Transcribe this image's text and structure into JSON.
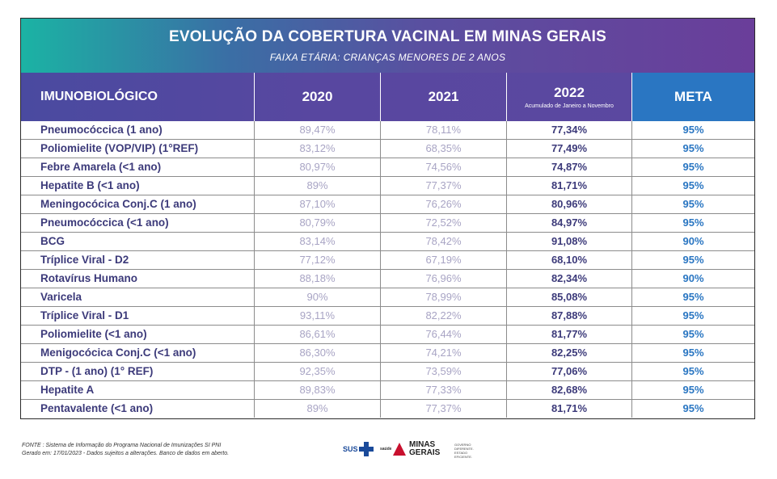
{
  "title": "EVOLUÇÃO DA COBERTURA VACINAL EM MINAS GERAIS",
  "subtitle": "FAIXA ETÁRIA: CRIANÇAS MENORES DE 2 ANOS",
  "columns": {
    "name": "IMUNOBIOLÓGICO",
    "y2020": "2020",
    "y2021": "2021",
    "y2022": "2022",
    "y2022_note": "Acumulado de Janeiro a Novembro",
    "meta": "META"
  },
  "colors": {
    "title_gradient_start": "#1bb3a4",
    "title_gradient_end": "#6a3e9a",
    "header_bg": "#5847a0",
    "meta_bg": "#2a76c2",
    "name_text": "#3c3a7a",
    "faded_text": "#a8a4c4"
  },
  "chart_data": {
    "type": "table",
    "title": "EVOLUÇÃO DA COBERTURA VACINAL EM MINAS GERAIS",
    "subtitle": "FAIXA ETÁRIA: CRIANÇAS MENORES DE 2 ANOS",
    "headers": [
      "IMUNOBIOLÓGICO",
      "2020",
      "2021",
      "2022",
      "META"
    ],
    "rows": [
      {
        "name": "Pneumocóccica (1 ano)",
        "y2020": "89,47%",
        "y2021": "78,11%",
        "y2022": "77,34%",
        "meta": "95%"
      },
      {
        "name": "Poliomielite (VOP/VIP) (1°REF)",
        "y2020": "83,12%",
        "y2021": "68,35%",
        "y2022": "77,49%",
        "meta": "95%"
      },
      {
        "name": "Febre Amarela (<1 ano)",
        "y2020": "80,97%",
        "y2021": "74,56%",
        "y2022": "74,87%",
        "meta": "95%"
      },
      {
        "name": "Hepatite B (<1 ano)",
        "y2020": "89%",
        "y2021": "77,37%",
        "y2022": "81,71%",
        "meta": "95%"
      },
      {
        "name": "Meningocócica Conj.C (1 ano)",
        "y2020": "87,10%",
        "y2021": "76,26%",
        "y2022": "80,96%",
        "meta": "95%"
      },
      {
        "name": "Pneumocóccica (<1 ano)",
        "y2020": "80,79%",
        "y2021": "72,52%",
        "y2022": "84,97%",
        "meta": "95%"
      },
      {
        "name": "BCG",
        "y2020": "83,14%",
        "y2021": "78,42%",
        "y2022": "91,08%",
        "meta": "90%"
      },
      {
        "name": "Tríplice Viral - D2",
        "y2020": "77,12%",
        "y2021": "67,19%",
        "y2022": "68,10%",
        "meta": "95%"
      },
      {
        "name": "Rotavírus Humano",
        "y2020": "88,18%",
        "y2021": "76,96%",
        "y2022": "82,34%",
        "meta": "90%"
      },
      {
        "name": "Varicela",
        "y2020": "90%",
        "y2021": "78,99%",
        "y2022": "85,08%",
        "meta": "95%"
      },
      {
        "name": "Tríplice Viral - D1",
        "y2020": "93,11%",
        "y2021": "82,22%",
        "y2022": "87,88%",
        "meta": "95%"
      },
      {
        "name": "Poliomielite (<1 ano)",
        "y2020": "86,61%",
        "y2021": "76,44%",
        "y2022": "81,77%",
        "meta": "95%"
      },
      {
        "name": "Menigocócica Conj.C (<1 ano)",
        "y2020": "86,30%",
        "y2021": "74,21%",
        "y2022": "82,25%",
        "meta": "95%"
      },
      {
        "name": "DTP - (1 ano) (1° REF)",
        "y2020": "92,35%",
        "y2021": "73,59%",
        "y2022": "77,06%",
        "meta": "95%"
      },
      {
        "name": "Hepatite A",
        "y2020": "89,83%",
        "y2021": "77,33%",
        "y2022": "82,68%",
        "meta": "95%"
      },
      {
        "name": "Pentavalente (<1 ano)",
        "y2020": "89%",
        "y2021": "77,37%",
        "y2022": "81,71%",
        "meta": "95%"
      }
    ]
  },
  "footer": {
    "source_line1": "FONTE : Sistema de Informação do Programa Nacional de Imunizações SI PNI",
    "source_line2": "Gerado em: 17/01/2023 - Dados sujeitos a alterações. Banco de dados em aberto."
  },
  "logos": {
    "sus_text": "SUS",
    "saude_text": "saúde",
    "mg_line1": "MINAS",
    "mg_line2": "GERAIS",
    "gov_line1": "GOVERNO",
    "gov_line2": "DIFERENTE.",
    "gov_line3": "ESTADO",
    "gov_line4": "EFICIENTE."
  }
}
